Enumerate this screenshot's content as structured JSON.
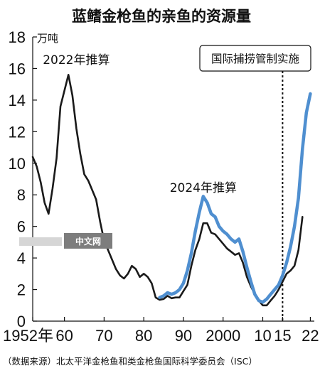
{
  "chart_data": {
    "type": "line",
    "title": "蓝鳍金枪鱼的亲鱼的资源量",
    "ylabel": "万吨",
    "ylim": [
      0,
      18
    ],
    "xlim": [
      1952,
      2023
    ],
    "y_ticks": [
      0,
      2,
      4,
      6,
      8,
      10,
      12,
      14,
      16,
      18
    ],
    "y_tick_labels": [
      "0",
      "2",
      "4",
      "6",
      "8",
      "10",
      "12",
      "14",
      "16",
      "18"
    ],
    "x_ticks": [
      1952,
      1960,
      1970,
      1980,
      1990,
      2000,
      2010,
      2015,
      2022
    ],
    "x_tick_labels": [
      "1952年",
      "60",
      "70",
      "80",
      "90",
      "2000",
      "10",
      "15",
      "22"
    ],
    "grid": false,
    "series": [
      {
        "name": "2022年推算",
        "color": "#1a1a1a",
        "x": [
          1952,
          1953,
          1954,
          1955,
          1956,
          1957,
          1958,
          1959,
          1960,
          1961,
          1962,
          1963,
          1964,
          1965,
          1966,
          1967,
          1968,
          1969,
          1970,
          1971,
          1972,
          1973,
          1974,
          1975,
          1976,
          1977,
          1978,
          1979,
          1980,
          1981,
          1982,
          1983,
          1984,
          1985,
          1986,
          1987,
          1988,
          1989,
          1990,
          1991,
          1992,
          1993,
          1994,
          1995,
          1996,
          1997,
          1998,
          1999,
          2000,
          2001,
          2002,
          2003,
          2004,
          2005,
          2006,
          2007,
          2008,
          2009,
          2010,
          2011,
          2012,
          2013,
          2014,
          2015,
          2016,
          2017,
          2018,
          2019,
          2020
        ],
        "values": [
          10.4,
          9.8,
          8.8,
          7.5,
          6.8,
          8.4,
          10.3,
          13.6,
          14.6,
          15.6,
          14.3,
          12.2,
          10.6,
          9.3,
          8.9,
          8.3,
          7.7,
          6.3,
          5.1,
          4.5,
          3.9,
          3.3,
          2.9,
          2.7,
          3.0,
          3.5,
          3.3,
          2.8,
          3.0,
          2.8,
          2.4,
          1.5,
          1.35,
          1.4,
          1.6,
          1.45,
          1.5,
          1.5,
          1.9,
          2.3,
          3.5,
          4.5,
          5.2,
          6.2,
          6.2,
          5.6,
          5.5,
          5.2,
          4.9,
          4.6,
          4.4,
          4.2,
          4.3,
          3.7,
          2.8,
          2.2,
          1.7,
          1.3,
          1.0,
          1.0,
          1.3,
          1.6,
          2.0,
          2.5,
          3.0,
          3.2,
          3.5,
          4.5,
          6.6
        ]
      },
      {
        "name": "2024年推算",
        "color": "#4f8fd0",
        "x": [
          1984,
          1985,
          1986,
          1987,
          1988,
          1989,
          1990,
          1991,
          1992,
          1993,
          1994,
          1995,
          1996,
          1997,
          1998,
          1999,
          2000,
          2001,
          2002,
          2003,
          2004,
          2005,
          2006,
          2007,
          2008,
          2009,
          2010,
          2011,
          2012,
          2013,
          2014,
          2015,
          2016,
          2017,
          2018,
          2019,
          2020,
          2021,
          2022
        ],
        "values": [
          1.5,
          1.6,
          1.8,
          1.7,
          1.8,
          2.0,
          2.4,
          3.2,
          4.3,
          5.7,
          6.9,
          7.9,
          7.5,
          6.8,
          6.6,
          6.0,
          5.7,
          5.5,
          5.2,
          5.0,
          5.2,
          4.4,
          3.4,
          2.5,
          1.7,
          1.3,
          1.2,
          1.4,
          1.7,
          2.0,
          2.3,
          2.9,
          3.7,
          4.7,
          6.0,
          7.8,
          10.9,
          13.2,
          14.4
        ]
      }
    ],
    "annotations": [
      {
        "text": "2022年推算",
        "x": 1963,
        "y": 16.3
      },
      {
        "text": "2024年推算",
        "x": 1995,
        "y": 8.2
      }
    ],
    "marker": {
      "label": "国际捕捞管制实施",
      "x": 2015
    },
    "source": "（数据来源）北太平洋金枪鱼和类金枪鱼国际科学委员会（ISC）",
    "watermark": "中文网"
  }
}
